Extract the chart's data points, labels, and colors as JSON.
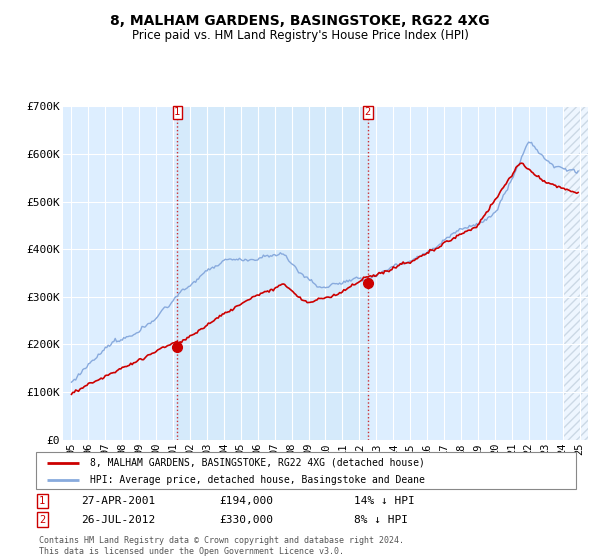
{
  "title": "8, MALHAM GARDENS, BASINGSTOKE, RG22 4XG",
  "subtitle": "Price paid vs. HM Land Registry's House Price Index (HPI)",
  "background_color": "#ffffff",
  "plot_background": "#ddeeff",
  "red_line_color": "#cc0000",
  "blue_line_color": "#88aadd",
  "marker_color": "#cc0000",
  "legend_entry1": "8, MALHAM GARDENS, BASINGSTOKE, RG22 4XG (detached house)",
  "legend_entry2": "HPI: Average price, detached house, Basingstoke and Deane",
  "transaction1_date": "27-APR-2001",
  "transaction1_price": "£194,000",
  "transaction1_hpi": "14% ↓ HPI",
  "transaction2_date": "26-JUL-2012",
  "transaction2_price": "£330,000",
  "transaction2_hpi": "8% ↓ HPI",
  "footnote": "Contains HM Land Registry data © Crown copyright and database right 2024.\nThis data is licensed under the Open Government Licence v3.0.",
  "ylim": [
    0,
    700000
  ],
  "yticks": [
    0,
    100000,
    200000,
    300000,
    400000,
    500000,
    600000,
    700000
  ],
  "ytick_labels": [
    "£0",
    "£100K",
    "£200K",
    "£300K",
    "£400K",
    "£500K",
    "£600K",
    "£700K"
  ]
}
